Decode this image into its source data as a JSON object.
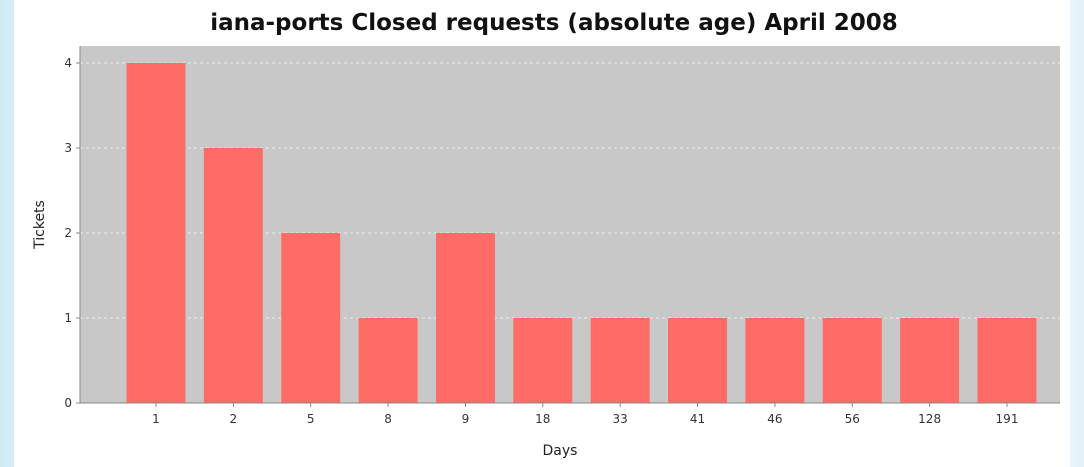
{
  "chart_data": {
    "type": "bar",
    "title": "iana-ports Closed requests (absolute age) April 2008",
    "xlabel": "Days",
    "ylabel": "Tickets",
    "categories": [
      "1",
      "2",
      "5",
      "8",
      "9",
      "18",
      "33",
      "41",
      "46",
      "56",
      "128",
      "191"
    ],
    "values": [
      4,
      3,
      2,
      1,
      2,
      1,
      1,
      1,
      1,
      1,
      1,
      1
    ],
    "ylim": [
      0,
      4.2
    ],
    "yticks": [
      "0",
      "1",
      "2",
      "3",
      "4"
    ],
    "grid": true,
    "colors": {
      "bar": "#ff6b66",
      "plot_background": "#c8c8c8",
      "grid": "#eeeeee"
    }
  }
}
